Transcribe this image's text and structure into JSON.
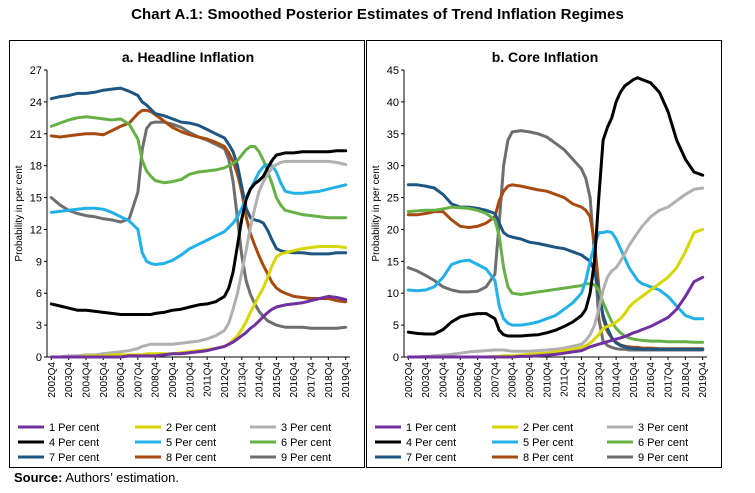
{
  "title": "Chart A.1: Smoothed Posterior Estimates of Trend Inflation Regimes",
  "source": {
    "label": "Source:",
    "text": "Authors’ estimation."
  },
  "colors": {
    "1 Per cent": "#7030a0",
    "2 Per cent": "#d6d600",
    "3 Per cent": "#b0b0b0",
    "4 Per cent": "#000000",
    "5 Per cent": "#22b0e8",
    "6 Per cent": "#66b046",
    "7 Per cent": "#1f5582",
    "8 Per cent": "#a84a10",
    "9 Per cent": "#6e6e6e"
  },
  "chart_data": [
    {
      "type": "line",
      "title": "a. Headline Inflation",
      "ylabel": "Probability in per cent",
      "xlabel": "",
      "ylim": [
        0,
        27
      ],
      "yticks": [
        0,
        3,
        6,
        9,
        12,
        15,
        18,
        21,
        24,
        27
      ],
      "x_tick_labels": [
        "2002Q4",
        "2003Q4",
        "2004Q4",
        "2005Q4",
        "2006Q4",
        "2007Q4",
        "2008Q4",
        "2009Q4",
        "2010Q4",
        "2011Q4",
        "2012Q4",
        "2013Q4",
        "2014Q4",
        "2015Q4",
        "2016Q4",
        "2017Q4",
        "2018Q4",
        "2019Q4"
      ],
      "x": [
        2002.75,
        2003.25,
        2003.75,
        2004.25,
        2004.75,
        2005.25,
        2005.75,
        2006.25,
        2006.75,
        2007.25,
        2007.75,
        2008.0,
        2008.25,
        2008.5,
        2008.75,
        2009.25,
        2009.75,
        2010.25,
        2010.75,
        2011.25,
        2011.75,
        2012.25,
        2012.75,
        2013.0,
        2013.25,
        2013.5,
        2013.75,
        2014.0,
        2014.25,
        2014.5,
        2014.75,
        2015.0,
        2015.25,
        2015.5,
        2015.75,
        2016.0,
        2016.25,
        2016.75,
        2017.25,
        2017.75,
        2018.25,
        2018.75,
        2019.25,
        2019.75
      ],
      "series": [
        {
          "name": "1 Per cent",
          "values": [
            0,
            0,
            0,
            0,
            0,
            0,
            0,
            0,
            0,
            0.1,
            0.1,
            0.1,
            0.1,
            0.1,
            0.1,
            0.2,
            0.3,
            0.3,
            0.4,
            0.5,
            0.6,
            0.8,
            1.0,
            1.2,
            1.4,
            1.7,
            2.0,
            2.3,
            2.7,
            3.0,
            3.4,
            3.8,
            4.2,
            4.5,
            4.7,
            4.8,
            4.9,
            5.0,
            5.1,
            5.3,
            5.5,
            5.7,
            5.6,
            5.4
          ]
        },
        {
          "name": "2 Per cent",
          "values": [
            0,
            0,
            0,
            0,
            0.1,
            0.1,
            0.1,
            0.2,
            0.2,
            0.2,
            0.2,
            0.2,
            0.3,
            0.3,
            0.3,
            0.3,
            0.3,
            0.4,
            0.5,
            0.6,
            0.7,
            0.8,
            1.0,
            1.2,
            1.6,
            2.0,
            2.6,
            3.3,
            4.2,
            5.0,
            5.8,
            6.5,
            7.5,
            8.6,
            9.4,
            9.7,
            9.8,
            10.0,
            10.2,
            10.3,
            10.4,
            10.4,
            10.4,
            10.3
          ]
        },
        {
          "name": "3 Per cent",
          "values": [
            0,
            0,
            0.1,
            0.1,
            0.2,
            0.2,
            0.3,
            0.4,
            0.5,
            0.6,
            0.8,
            1.0,
            1.1,
            1.2,
            1.2,
            1.2,
            1.2,
            1.3,
            1.4,
            1.5,
            1.7,
            2.0,
            2.5,
            3.2,
            4.5,
            6.0,
            8.0,
            10.0,
            12.2,
            14.0,
            15.6,
            16.5,
            17.2,
            17.8,
            18.1,
            18.3,
            18.4,
            18.4,
            18.4,
            18.4,
            18.4,
            18.4,
            18.3,
            18.1
          ]
        },
        {
          "name": "4 Per cent",
          "values": [
            5.0,
            4.8,
            4.6,
            4.4,
            4.4,
            4.3,
            4.2,
            4.1,
            4.0,
            4.0,
            4.0,
            4.0,
            4.0,
            4.0,
            4.1,
            4.2,
            4.4,
            4.5,
            4.7,
            4.9,
            5.0,
            5.2,
            5.7,
            6.5,
            8.0,
            10.5,
            13.0,
            14.8,
            15.8,
            16.3,
            16.6,
            17.0,
            17.8,
            18.5,
            19.0,
            19.1,
            19.2,
            19.2,
            19.3,
            19.3,
            19.3,
            19.3,
            19.4,
            19.4
          ]
        },
        {
          "name": "5 Per cent",
          "values": [
            13.6,
            13.7,
            13.8,
            13.9,
            14.0,
            14.0,
            13.9,
            13.6,
            13.2,
            12.8,
            12.0,
            9.8,
            9.0,
            8.8,
            8.7,
            8.8,
            9.1,
            9.6,
            10.2,
            10.6,
            11.0,
            11.4,
            11.8,
            12.2,
            12.6,
            13.2,
            14.0,
            15.0,
            15.8,
            16.6,
            17.4,
            17.9,
            18.1,
            18.0,
            17.4,
            16.4,
            15.6,
            15.4,
            15.4,
            15.5,
            15.6,
            15.8,
            16.0,
            16.2
          ]
        },
        {
          "name": "6 Per cent",
          "values": [
            21.7,
            22.0,
            22.3,
            22.5,
            22.6,
            22.5,
            22.4,
            22.3,
            22.4,
            21.9,
            20.5,
            18.5,
            17.5,
            17.0,
            16.6,
            16.4,
            16.5,
            16.7,
            17.2,
            17.4,
            17.5,
            17.6,
            17.8,
            18.0,
            18.2,
            18.5,
            19.0,
            19.5,
            19.8,
            19.8,
            19.3,
            18.5,
            17.4,
            16.3,
            15.0,
            14.3,
            13.8,
            13.6,
            13.4,
            13.3,
            13.2,
            13.1,
            13.1,
            13.1
          ]
        },
        {
          "name": "7 Per cent",
          "values": [
            24.3,
            24.5,
            24.6,
            24.8,
            24.8,
            24.9,
            25.1,
            25.2,
            25.3,
            25.0,
            24.6,
            24.0,
            23.7,
            23.3,
            22.9,
            22.7,
            22.4,
            22.1,
            22.0,
            21.8,
            21.4,
            21.0,
            20.6,
            20.0,
            19.3,
            18.0,
            16.0,
            14.0,
            13.1,
            12.9,
            12.8,
            12.6,
            11.9,
            11.0,
            10.2,
            10.0,
            9.9,
            9.8,
            9.8,
            9.7,
            9.7,
            9.7,
            9.8,
            9.8
          ]
        },
        {
          "name": "8 Per cent",
          "values": [
            20.8,
            20.7,
            20.8,
            20.9,
            21.0,
            21.0,
            20.9,
            21.3,
            21.7,
            22.0,
            22.9,
            23.2,
            23.2,
            23.1,
            22.8,
            22.2,
            21.6,
            21.2,
            20.9,
            20.7,
            20.5,
            20.2,
            19.8,
            19.2,
            18.4,
            17.2,
            15.5,
            13.2,
            11.6,
            10.5,
            9.5,
            8.6,
            7.8,
            7.0,
            6.5,
            6.2,
            6.0,
            5.7,
            5.6,
            5.5,
            5.5,
            5.5,
            5.3,
            5.2
          ]
        },
        {
          "name": "9 Per cent",
          "values": [
            15.0,
            14.3,
            13.8,
            13.5,
            13.3,
            13.2,
            13.0,
            12.9,
            12.7,
            13.0,
            15.5,
            19.5,
            21.5,
            22.0,
            22.1,
            22.1,
            21.9,
            21.6,
            21.1,
            20.7,
            20.4,
            20.0,
            19.6,
            18.6,
            16.5,
            13.0,
            9.5,
            7.2,
            5.9,
            5.0,
            4.3,
            3.8,
            3.4,
            3.2,
            3.0,
            2.9,
            2.8,
            2.8,
            2.8,
            2.7,
            2.7,
            2.7,
            2.7,
            2.8
          ]
        }
      ]
    },
    {
      "type": "line",
      "title": "b. Core Inflation",
      "ylabel": "Probability in per cent",
      "xlabel": "",
      "ylim": [
        0,
        45
      ],
      "yticks": [
        0,
        5,
        10,
        15,
        20,
        25,
        30,
        35,
        40,
        45
      ],
      "x_tick_labels": [
        "2002Q4",
        "2003Q4",
        "2004Q4",
        "2005Q4",
        "2006Q4",
        "2007Q4",
        "2008Q4",
        "2009Q4",
        "2010Q4",
        "2011Q4",
        "2012Q4",
        "2013Q4",
        "2014Q4",
        "2015Q4",
        "2016Q4",
        "2017Q4",
        "2018Q4",
        "2019Q4"
      ],
      "x": [
        2002.75,
        2003.25,
        2003.75,
        2004.25,
        2004.75,
        2005.25,
        2005.75,
        2006.25,
        2006.75,
        2007.25,
        2007.75,
        2008.0,
        2008.25,
        2008.5,
        2008.75,
        2009.25,
        2009.75,
        2010.25,
        2010.75,
        2011.25,
        2011.75,
        2012.25,
        2012.75,
        2013.0,
        2013.25,
        2013.5,
        2013.75,
        2014.0,
        2014.25,
        2014.5,
        2014.75,
        2015.0,
        2015.25,
        2015.5,
        2015.75,
        2016.0,
        2016.25,
        2016.75,
        2017.25,
        2017.75,
        2018.25,
        2018.75,
        2019.25,
        2019.75
      ],
      "series": [
        {
          "name": "1 Per cent",
          "values": [
            0,
            0,
            0,
            0,
            0,
            0,
            0,
            0,
            0,
            0,
            0,
            0,
            0,
            0,
            0,
            0.1,
            0.1,
            0.2,
            0.3,
            0.4,
            0.6,
            0.8,
            1.0,
            1.3,
            1.6,
            1.8,
            2.0,
            2.2,
            2.4,
            2.6,
            2.8,
            3.0,
            3.2,
            3.5,
            3.8,
            4.0,
            4.3,
            4.8,
            5.5,
            6.2,
            7.5,
            9.5,
            11.8,
            12.5
          ]
        },
        {
          "name": "2 Per cent",
          "values": [
            0,
            0,
            0,
            0,
            0,
            0,
            0,
            0,
            0,
            0,
            0.1,
            0.1,
            0.2,
            0.2,
            0.2,
            0.3,
            0.4,
            0.5,
            0.6,
            0.8,
            1.0,
            1.2,
            1.5,
            1.8,
            2.2,
            2.8,
            3.5,
            4.5,
            4.8,
            5.0,
            5.5,
            6.0,
            6.8,
            7.8,
            8.5,
            9.0,
            9.5,
            10.5,
            11.5,
            12.5,
            14.0,
            16.5,
            19.5,
            20.0
          ]
        },
        {
          "name": "3 Per cent",
          "values": [
            0,
            0,
            0.1,
            0.2,
            0.3,
            0.4,
            0.6,
            0.8,
            0.9,
            1.0,
            1.1,
            1.1,
            1.1,
            1.0,
            0.9,
            0.9,
            0.9,
            1.0,
            1.1,
            1.2,
            1.4,
            1.7,
            2.0,
            2.6,
            3.5,
            5.0,
            7.5,
            10.5,
            12.5,
            13.5,
            14.0,
            15.0,
            16.2,
            17.5,
            18.5,
            19.5,
            20.5,
            22.0,
            23.0,
            23.5,
            24.5,
            25.5,
            26.3,
            26.5
          ]
        },
        {
          "name": "4 Per cent",
          "values": [
            3.9,
            3.7,
            3.6,
            3.6,
            4.3,
            5.5,
            6.3,
            6.6,
            6.8,
            6.8,
            6.0,
            4.2,
            3.5,
            3.3,
            3.3,
            3.3,
            3.4,
            3.5,
            3.8,
            4.2,
            4.8,
            5.5,
            6.5,
            7.5,
            10.0,
            15.0,
            25.0,
            34.0,
            36.0,
            37.5,
            40.0,
            41.5,
            42.5,
            43.0,
            43.5,
            43.8,
            43.5,
            43.0,
            41.5,
            38.5,
            34.0,
            31.0,
            29.0,
            28.5
          ]
        },
        {
          "name": "5 Per cent",
          "values": [
            10.5,
            10.4,
            10.5,
            11.0,
            12.5,
            14.5,
            15.0,
            15.2,
            14.5,
            13.8,
            12.0,
            8.0,
            6.0,
            5.3,
            5.0,
            5.0,
            5.2,
            5.5,
            6.0,
            6.5,
            7.5,
            8.5,
            10.0,
            12.0,
            15.0,
            17.5,
            19.5,
            19.5,
            19.7,
            19.5,
            18.5,
            17.0,
            15.5,
            14.0,
            13.0,
            12.0,
            11.5,
            11.0,
            10.5,
            9.5,
            8.0,
            6.5,
            6.0,
            6.0
          ]
        },
        {
          "name": "6 Per cent",
          "values": [
            22.8,
            22.9,
            23.0,
            23.0,
            23.2,
            23.5,
            23.4,
            23.3,
            23.0,
            22.5,
            21.5,
            19.0,
            14.0,
            11.0,
            10.0,
            9.8,
            10.0,
            10.2,
            10.4,
            10.6,
            10.8,
            11.0,
            11.2,
            11.5,
            11.5,
            11.3,
            10.5,
            8.5,
            7.0,
            5.5,
            4.5,
            3.8,
            3.3,
            3.0,
            2.8,
            2.7,
            2.6,
            2.5,
            2.5,
            2.4,
            2.4,
            2.4,
            2.3,
            2.3
          ]
        },
        {
          "name": "7 Per cent",
          "values": [
            27.0,
            27.0,
            26.8,
            26.5,
            25.5,
            24.0,
            23.5,
            23.5,
            23.3,
            23.0,
            22.5,
            21.0,
            19.5,
            19.0,
            18.8,
            18.5,
            18.0,
            17.8,
            17.5,
            17.2,
            17.0,
            16.5,
            16.0,
            15.5,
            15.0,
            13.5,
            10.0,
            6.5,
            4.5,
            3.0,
            2.2,
            1.8,
            1.6,
            1.4,
            1.3,
            1.3,
            1.2,
            1.2,
            1.2,
            1.2,
            1.2,
            1.2,
            1.2,
            1.2
          ]
        },
        {
          "name": "8 Per cent",
          "values": [
            22.3,
            22.3,
            22.5,
            22.8,
            22.8,
            21.5,
            20.5,
            20.3,
            20.5,
            21.0,
            22.0,
            24.5,
            26.0,
            26.8,
            27.0,
            26.8,
            26.5,
            26.2,
            26.0,
            25.5,
            25.0,
            24.0,
            23.5,
            23.0,
            22.0,
            18.0,
            11.0,
            6.0,
            4.0,
            3.0,
            2.3,
            1.9,
            1.7,
            1.6,
            1.5,
            1.5,
            1.4,
            1.4,
            1.3,
            1.3,
            1.3,
            1.3,
            1.3,
            1.3
          ]
        },
        {
          "name": "9 Per cent",
          "values": [
            14.0,
            13.5,
            12.8,
            12.0,
            11.0,
            10.5,
            10.2,
            10.2,
            10.3,
            11.0,
            13.0,
            21.0,
            30.0,
            34.0,
            35.3,
            35.5,
            35.3,
            35.0,
            34.5,
            33.5,
            32.5,
            31.0,
            29.5,
            28.0,
            25.0,
            16.0,
            6.0,
            2.5,
            1.8,
            1.5,
            1.3,
            1.2,
            1.2,
            1.1,
            1.1,
            1.1,
            1.1,
            1.1,
            1.1,
            1.1,
            1.1,
            1.1,
            1.1,
            1.1
          ]
        }
      ]
    }
  ]
}
